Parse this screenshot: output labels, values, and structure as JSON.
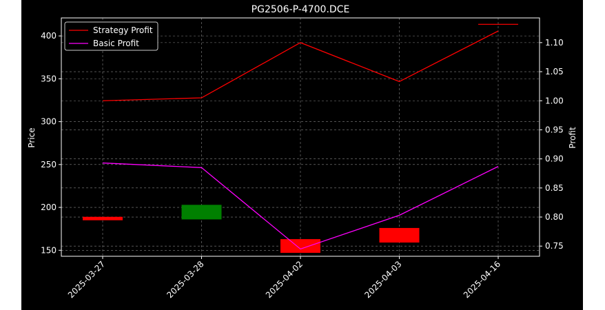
{
  "chart_data": {
    "type": "candlestick+line",
    "title": "PG2506-P-4700.DCE",
    "xlabel": "",
    "ylabel": "Price",
    "y2label": "Profit",
    "categories": [
      "2025-03-27",
      "2025-03-28",
      "2025-04-02",
      "2025-04-03",
      "2025-04-16"
    ],
    "ylim": [
      143,
      421
    ],
    "yticks": [
      150,
      200,
      250,
      300,
      350,
      400
    ],
    "y2lim": [
      0.7325,
      1.1425
    ],
    "y2ticks": [
      0.75,
      0.8,
      0.85,
      0.9,
      0.95,
      1.0,
      1.05,
      1.1
    ],
    "y2ticklabels": [
      "0.75",
      "0.80",
      "0.85",
      "0.90",
      "0.95",
      "1.00",
      "1.05",
      "1.10"
    ],
    "grid": true,
    "legend_position": "top-left",
    "candles": [
      {
        "date": "2025-03-27",
        "open": 189,
        "close": 185,
        "color": "#ff0000"
      },
      {
        "date": "2025-03-28",
        "open": 186,
        "close": 203,
        "color": "#008000"
      },
      {
        "date": "2025-04-02",
        "open": 163,
        "close": 147,
        "color": "#ff0000"
      },
      {
        "date": "2025-04-03",
        "open": 176,
        "close": 159,
        "color": "#ff0000"
      },
      {
        "date": "2025-04-16",
        "open": 414,
        "close": 414,
        "color": "#ff0000"
      }
    ],
    "series": [
      {
        "name": "Strategy Profit",
        "color": "#ff0000",
        "axis": "right",
        "values": [
          1.0,
          1.005,
          1.1,
          1.033,
          1.12
        ]
      },
      {
        "name": "Basic Profit",
        "color": "#ff00ff",
        "axis": "right",
        "values": [
          0.893,
          0.885,
          0.745,
          0.803,
          0.887
        ]
      }
    ]
  }
}
